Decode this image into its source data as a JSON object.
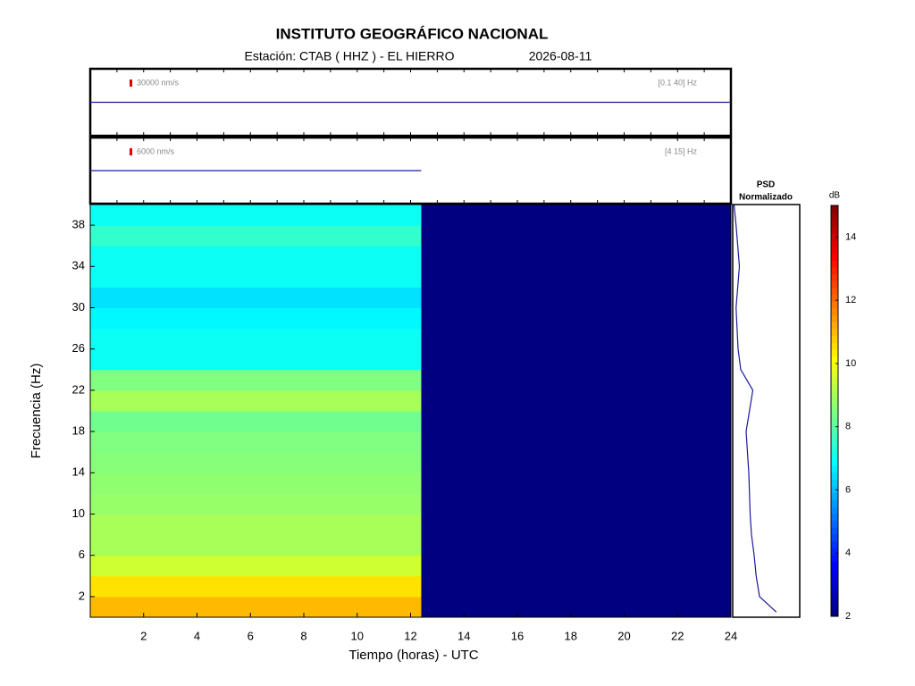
{
  "title": "INSTITUTO GEOGRÁFICO NACIONAL",
  "station": "Estación:  CTAB ( HHZ ) - EL HIERRO",
  "date": "2026-08-11",
  "chart_data": [
    {
      "type": "trace",
      "scale_label": "30000 nm/s",
      "filter_label": "[0.1 40] Hz",
      "color": "#1a1a9c",
      "x": [
        0,
        24
      ],
      "values": [
        0,
        0
      ],
      "xlim": [
        0,
        24
      ],
      "ylim": [
        -60000,
        60000
      ]
    },
    {
      "type": "trace",
      "scale_label": "6000 nm/s",
      "filter_label": "[4 15] Hz",
      "color": "#1a1a9c",
      "x": [
        0,
        12.4
      ],
      "values": [
        0,
        0
      ],
      "xlim": [
        0,
        24
      ],
      "ylim": [
        -12000,
        12000
      ]
    },
    {
      "type": "heatmap",
      "xlabel": "Tiempo (horas) - UTC",
      "ylabel": "Frecuencia  (Hz)",
      "x_edges": [
        0,
        12.4,
        24
      ],
      "y_edges": [
        0,
        2,
        4,
        6,
        8,
        10,
        12,
        14,
        16,
        18,
        20,
        22,
        24,
        26,
        28,
        30,
        32,
        34,
        36,
        38,
        40
      ],
      "values": [
        [
          11,
          2
        ],
        [
          10.5,
          2
        ],
        [
          9.5,
          2
        ],
        [
          9,
          2
        ],
        [
          9,
          2
        ],
        [
          8.8,
          2
        ],
        [
          8.7,
          2
        ],
        [
          8.6,
          2
        ],
        [
          8.5,
          2
        ],
        [
          8.3,
          2
        ],
        [
          9,
          2
        ],
        [
          8.5,
          2
        ],
        [
          7,
          2
        ],
        [
          7,
          2
        ],
        [
          6.8,
          2
        ],
        [
          6.5,
          2
        ],
        [
          7,
          2
        ],
        [
          7,
          2
        ],
        [
          7.5,
          2
        ],
        [
          7,
          2
        ]
      ],
      "clim": [
        2,
        15
      ],
      "xlim": [
        0,
        24
      ],
      "ylim": [
        0,
        40
      ],
      "xticks": [
        2,
        4,
        6,
        8,
        10,
        12,
        14,
        16,
        18,
        20,
        22,
        24
      ],
      "yticks": [
        2,
        6,
        10,
        14,
        18,
        22,
        26,
        30,
        34,
        38
      ]
    },
    {
      "type": "psd",
      "title": "PSD",
      "subtitle": "Normalizado",
      "color": "#1a1a9c",
      "y": [
        0.5,
        2,
        4,
        6,
        8,
        10,
        14,
        18,
        22,
        24,
        26,
        30,
        34,
        38,
        40
      ],
      "values": [
        0.65,
        0.4,
        0.35,
        0.32,
        0.28,
        0.26,
        0.24,
        0.2,
        0.3,
        0.12,
        0.08,
        0.05,
        0.1,
        0.05,
        0.02
      ],
      "xlim": [
        0,
        1
      ],
      "ylim": [
        0,
        40
      ]
    },
    {
      "type": "colorbar",
      "label": "dB",
      "clim": [
        2,
        15
      ],
      "ticks": [
        2,
        4,
        6,
        8,
        10,
        12,
        14
      ]
    }
  ]
}
